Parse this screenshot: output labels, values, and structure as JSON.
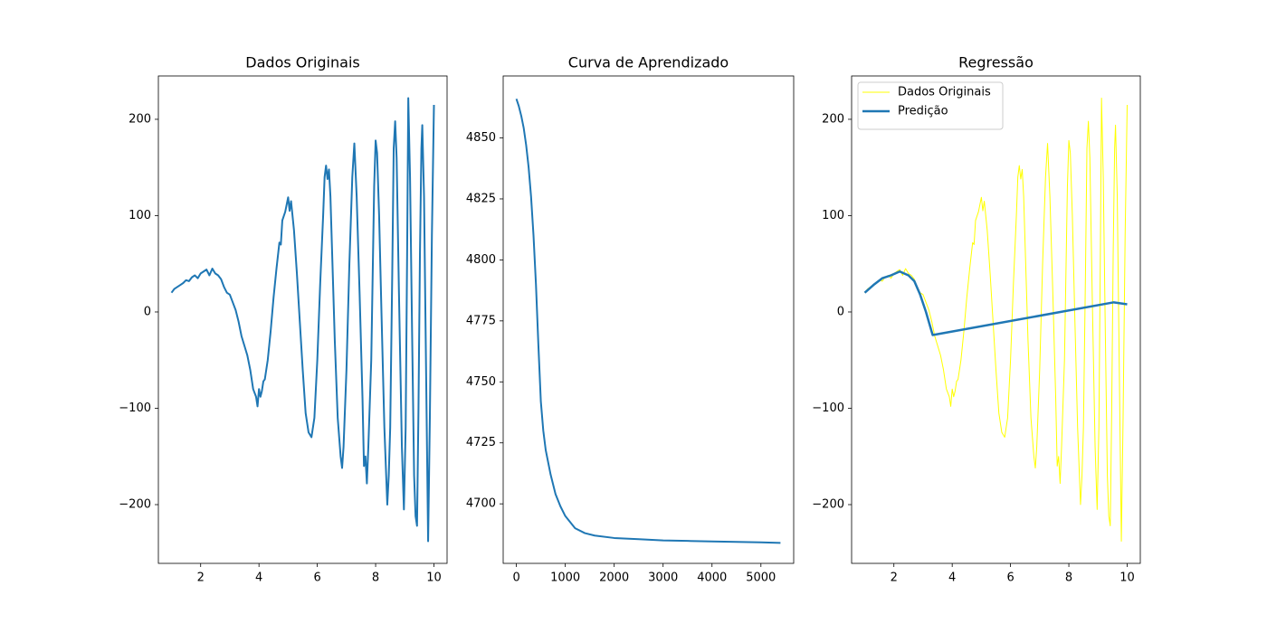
{
  "chart_data": [
    {
      "type": "line",
      "title": "Dados Originais",
      "xlim": [
        0.55,
        10.45
      ],
      "xticks": [
        2,
        4,
        6,
        8,
        10
      ],
      "ylim": [
        -261,
        245
      ],
      "yticks": [
        {
          "value": -200,
          "label": "−200"
        },
        {
          "value": -100,
          "label": "−100"
        },
        0,
        100,
        200
      ],
      "series": [
        {
          "color": "#1f77b4",
          "linewidth": 2,
          "x": [
            1.0,
            1.1,
            1.2,
            1.3,
            1.4,
            1.5,
            1.6,
            1.7,
            1.8,
            1.9,
            2.0,
            2.1,
            2.2,
            2.3,
            2.4,
            2.5,
            2.6,
            2.7,
            2.8,
            2.9,
            3.0,
            3.1,
            3.2,
            3.3,
            3.4,
            3.5,
            3.6,
            3.7,
            3.8,
            3.9,
            3.95,
            4.0,
            4.05,
            4.1,
            4.15,
            4.2,
            4.3,
            4.4,
            4.5,
            4.6,
            4.7,
            4.75,
            4.8,
            4.9,
            5.0,
            5.05,
            5.1,
            5.15,
            5.2,
            5.3,
            5.4,
            5.5,
            5.6,
            5.7,
            5.8,
            5.9,
            5.95,
            6.0,
            6.1,
            6.2,
            6.25,
            6.3,
            6.35,
            6.4,
            6.45,
            6.5,
            6.6,
            6.7,
            6.8,
            6.85,
            6.9,
            7.0,
            7.1,
            7.2,
            7.27,
            7.35,
            7.45,
            7.55,
            7.6,
            7.65,
            7.7,
            7.75,
            7.85,
            7.95,
            8.0,
            8.05,
            8.12,
            8.2,
            8.3,
            8.4,
            8.45,
            8.5,
            8.57,
            8.62,
            8.67,
            8.72,
            8.8,
            8.9,
            8.97,
            9.03,
            9.08,
            9.12,
            9.18,
            9.25,
            9.32,
            9.37,
            9.42,
            9.47,
            9.52,
            9.57,
            9.6,
            9.66,
            9.73,
            9.8,
            9.86,
            9.93,
            10.0
          ],
          "values": [
            20,
            24,
            26,
            28,
            30,
            33,
            32,
            36,
            38,
            35,
            40,
            42,
            44,
            38,
            45,
            40,
            38,
            34,
            26,
            20,
            18,
            10,
            2,
            -10,
            -25,
            -35,
            -45,
            -60,
            -80,
            -88,
            -98,
            -80,
            -88,
            -82,
            -72,
            -70,
            -50,
            -20,
            15,
            45,
            72,
            70,
            95,
            104,
            119,
            105,
            115,
            100,
            85,
            40,
            -10,
            -60,
            -105,
            -125,
            -130,
            -110,
            -80,
            -50,
            30,
            100,
            140,
            152,
            138,
            148,
            120,
            70,
            -30,
            -110,
            -150,
            -162,
            -140,
            -60,
            50,
            140,
            175,
            120,
            20,
            -90,
            -160,
            -150,
            -178,
            -140,
            -50,
            130,
            178,
            165,
            100,
            0,
            -120,
            -200,
            -170,
            -120,
            40,
            170,
            198,
            160,
            20,
            -140,
            -205,
            -120,
            60,
            222,
            140,
            -20,
            -170,
            -212,
            -222,
            -100,
            60,
            170,
            194,
            120,
            -60,
            -238,
            -110,
            80,
            215
          ]
        }
      ]
    },
    {
      "type": "line",
      "title": "Curva de Aprendizado",
      "xlim": [
        -270,
        5670
      ],
      "xticks": [
        0,
        1000,
        2000,
        3000,
        4000,
        5000
      ],
      "ylim": [
        4675.6,
        4875.4
      ],
      "yticks": [
        4700,
        4725,
        4750,
        4775,
        4800,
        4825,
        4850
      ],
      "series": [
        {
          "color": "#1f77b4",
          "linewidth": 2,
          "x": [
            0,
            50,
            100,
            150,
            200,
            250,
            300,
            350,
            400,
            450,
            500,
            550,
            600,
            700,
            800,
            900,
            1000,
            1200,
            1400,
            1600,
            2000,
            2500,
            3000,
            3500,
            4000,
            4500,
            5000,
            5400
          ],
          "values": [
            4866,
            4863,
            4859,
            4854,
            4847,
            4838,
            4826,
            4810,
            4790,
            4765,
            4742,
            4730,
            4722,
            4712,
            4704,
            4699,
            4695,
            4690,
            4688,
            4687,
            4686,
            4685.5,
            4685,
            4684.8,
            4684.6,
            4684.4,
            4684.2,
            4684
          ]
        }
      ]
    },
    {
      "type": "line",
      "title": "Regressão",
      "legend": "upper left",
      "xlim": [
        0.55,
        10.45
      ],
      "xticks": [
        2,
        4,
        6,
        8,
        10
      ],
      "ylim": [
        -261,
        245
      ],
      "yticks": [
        {
          "value": -200,
          "label": "−200"
        },
        {
          "value": -100,
          "label": "−100"
        },
        0,
        100,
        200
      ],
      "series": [
        {
          "name": "Dados Originais",
          "color": "#ffff00",
          "linewidth": 1,
          "x": [
            1.0,
            1.1,
            1.2,
            1.3,
            1.4,
            1.5,
            1.6,
            1.7,
            1.8,
            1.9,
            2.0,
            2.1,
            2.2,
            2.3,
            2.4,
            2.5,
            2.6,
            2.7,
            2.8,
            2.9,
            3.0,
            3.1,
            3.2,
            3.3,
            3.4,
            3.5,
            3.6,
            3.7,
            3.8,
            3.9,
            3.95,
            4.0,
            4.05,
            4.1,
            4.15,
            4.2,
            4.3,
            4.4,
            4.5,
            4.6,
            4.7,
            4.75,
            4.8,
            4.9,
            5.0,
            5.05,
            5.1,
            5.15,
            5.2,
            5.3,
            5.4,
            5.5,
            5.6,
            5.7,
            5.8,
            5.9,
            5.95,
            6.0,
            6.1,
            6.2,
            6.25,
            6.3,
            6.35,
            6.4,
            6.45,
            6.5,
            6.6,
            6.7,
            6.8,
            6.85,
            6.9,
            7.0,
            7.1,
            7.2,
            7.27,
            7.35,
            7.45,
            7.55,
            7.6,
            7.65,
            7.7,
            7.75,
            7.85,
            7.95,
            8.0,
            8.05,
            8.12,
            8.2,
            8.3,
            8.4,
            8.45,
            8.5,
            8.57,
            8.62,
            8.67,
            8.72,
            8.8,
            8.9,
            8.97,
            9.03,
            9.08,
            9.12,
            9.18,
            9.25,
            9.32,
            9.37,
            9.42,
            9.47,
            9.52,
            9.57,
            9.6,
            9.66,
            9.73,
            9.8,
            9.86,
            9.93,
            10.0
          ],
          "values": [
            20,
            24,
            26,
            28,
            30,
            33,
            32,
            36,
            38,
            35,
            40,
            42,
            44,
            38,
            45,
            40,
            38,
            34,
            26,
            20,
            18,
            10,
            2,
            -10,
            -25,
            -35,
            -45,
            -60,
            -80,
            -88,
            -98,
            -80,
            -88,
            -82,
            -72,
            -70,
            -50,
            -20,
            15,
            45,
            72,
            70,
            95,
            104,
            119,
            105,
            115,
            100,
            85,
            40,
            -10,
            -60,
            -105,
            -125,
            -130,
            -110,
            -80,
            -50,
            30,
            100,
            140,
            152,
            138,
            148,
            120,
            70,
            -30,
            -110,
            -150,
            -162,
            -140,
            -60,
            50,
            140,
            175,
            120,
            20,
            -90,
            -160,
            -150,
            -178,
            -140,
            -50,
            130,
            178,
            165,
            100,
            0,
            -120,
            -200,
            -170,
            -120,
            40,
            170,
            198,
            160,
            20,
            -140,
            -205,
            -120,
            60,
            222,
            140,
            -20,
            -170,
            -212,
            -222,
            -100,
            60,
            170,
            194,
            120,
            -60,
            -238,
            -110,
            80,
            215
          ]
        },
        {
          "name": "Predição",
          "color": "#1f77b4",
          "linewidth": 2.5,
          "x": [
            1.0,
            1.3,
            1.6,
            1.9,
            2.2,
            2.5,
            2.7,
            2.9,
            3.1,
            3.33,
            9.54,
            10.0
          ],
          "values": [
            20,
            28,
            35,
            38,
            42,
            38,
            32,
            18,
            0,
            -24,
            10,
            8
          ]
        }
      ]
    }
  ]
}
